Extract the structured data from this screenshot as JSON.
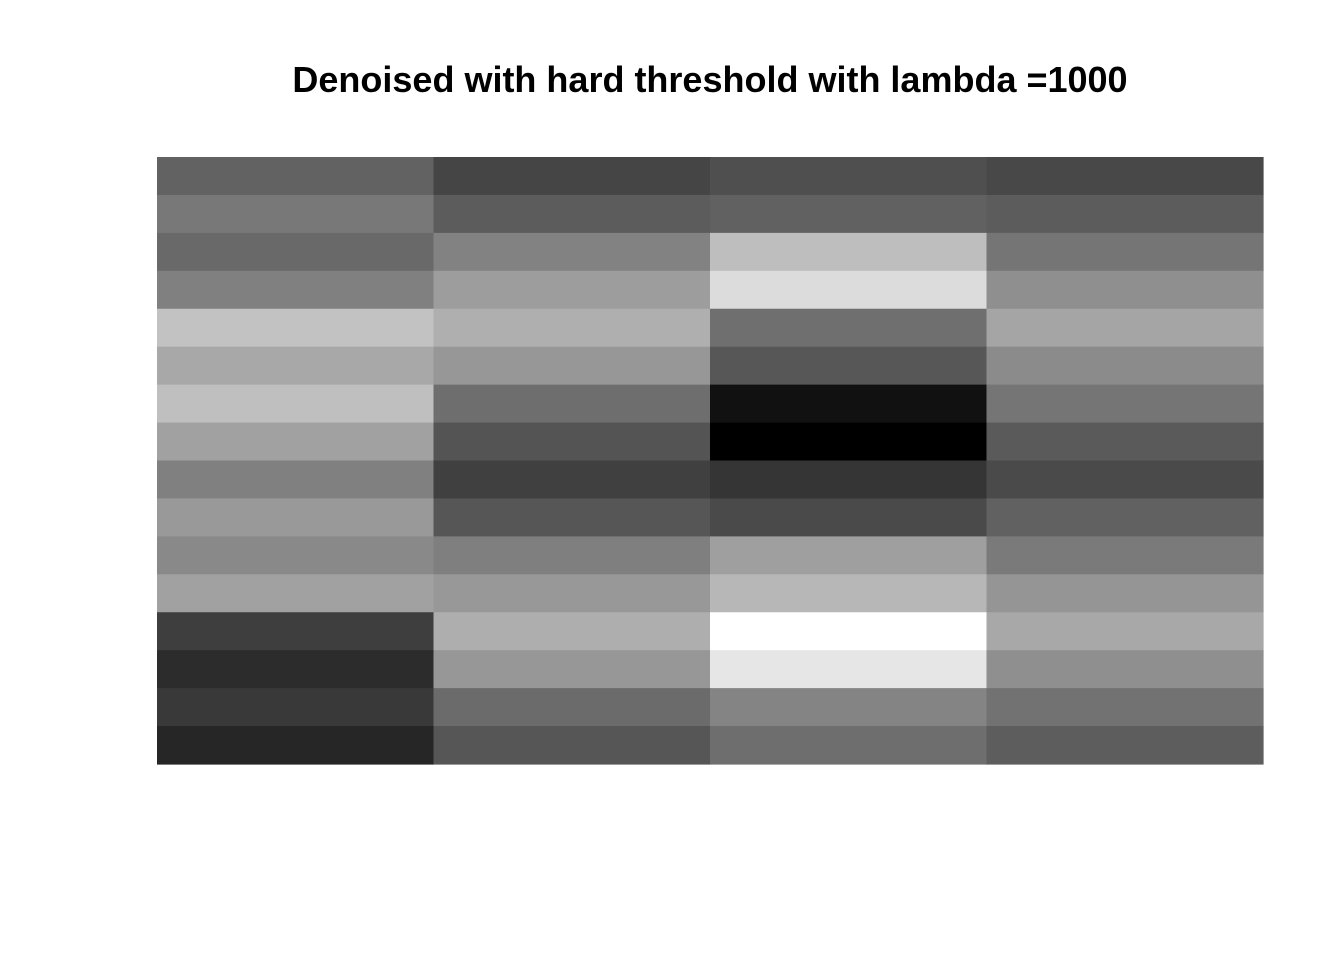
{
  "chart_data": {
    "type": "heatmap",
    "title": "Denoised with hard threshold with lambda =1000",
    "xlabel": "",
    "ylabel": "",
    "axes_visible": false,
    "grid": false,
    "legend": "none",
    "colormap": "grayscale",
    "value_range": [
      0,
      255
    ],
    "n_columns": 4,
    "n_rows": 16,
    "values_by_row": [
      [
        98,
        69,
        79,
        72
      ],
      [
        120,
        92,
        97,
        92
      ],
      [
        105,
        130,
        190,
        117
      ],
      [
        128,
        157,
        220,
        143
      ],
      [
        194,
        175,
        111,
        165
      ],
      [
        168,
        151,
        87,
        139
      ],
      [
        191,
        110,
        17,
        117
      ],
      [
        161,
        84,
        0,
        90
      ],
      [
        128,
        64,
        53,
        74
      ],
      [
        153,
        86,
        74,
        97
      ],
      [
        137,
        127,
        159,
        122
      ],
      [
        161,
        152,
        183,
        149
      ],
      [
        62,
        174,
        255,
        168
      ],
      [
        44,
        151,
        230,
        143
      ],
      [
        57,
        107,
        132,
        114
      ],
      [
        38,
        86,
        110,
        93
      ]
    ]
  }
}
